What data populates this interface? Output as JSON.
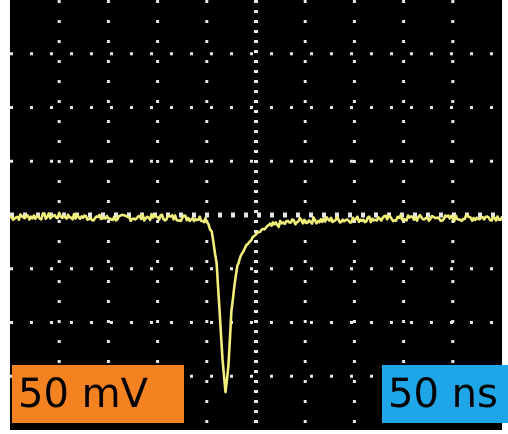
{
  "colors": {
    "screen": "#000000",
    "grid": "#e6e6e6",
    "trace": "#f2ee7a",
    "volt_badge": "#f58220",
    "time_badge": "#1fa6e8"
  },
  "labels": {
    "volts_per_div": "50 mV",
    "time_per_div": "50 ns"
  },
  "chart_data": {
    "type": "line",
    "title": "",
    "xlabel": "",
    "ylabel": "",
    "x_unit": "ns",
    "y_unit": "mV",
    "x_per_div": 50,
    "y_per_div": 50,
    "divisions": {
      "horizontal": 10,
      "vertical": 8
    },
    "xlim": [
      -210,
      290
    ],
    "ylim": [
      -195,
      205
    ],
    "grid": true,
    "series": [
      {
        "x": [
          -210,
          -160,
          -110,
          -60,
          -20,
          -10,
          -5,
          0,
          3,
          6,
          9,
          12,
          15,
          18,
          21,
          25,
          30,
          35,
          40,
          50,
          60,
          80,
          100,
          140,
          190,
          240,
          290
        ],
        "y": [
          3,
          4,
          2,
          3,
          2,
          1,
          -10,
          -40,
          -85,
          -130,
          -160,
          -135,
          -85,
          -60,
          -42,
          -32,
          -24,
          -18,
          -13,
          -7,
          -4,
          -1,
          0,
          1,
          2,
          2,
          3
        ]
      }
    ]
  }
}
